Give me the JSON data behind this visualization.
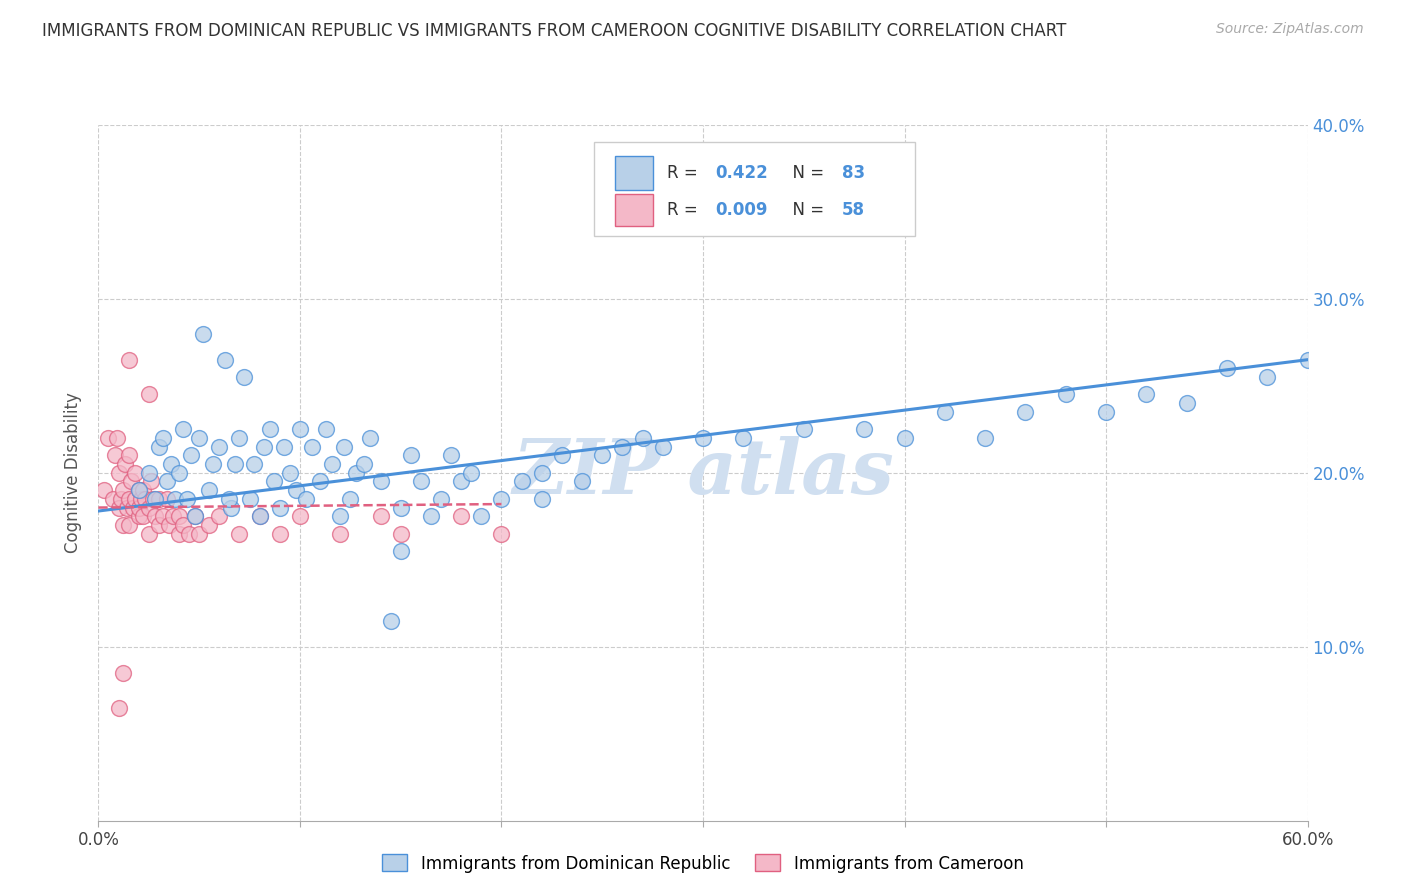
{
  "title": "IMMIGRANTS FROM DOMINICAN REPUBLIC VS IMMIGRANTS FROM CAMEROON COGNITIVE DISABILITY CORRELATION CHART",
  "source": "Source: ZipAtlas.com",
  "ylabel": "Cognitive Disability",
  "legend_label_1": "Immigrants from Dominican Republic",
  "legend_label_2": "Immigrants from Cameroon",
  "R1": "0.422",
  "N1": "83",
  "R2": "0.009",
  "N2": "58",
  "xlim": [
    0.0,
    0.6
  ],
  "ylim": [
    0.0,
    0.4
  ],
  "xticks": [
    0.0,
    0.1,
    0.2,
    0.3,
    0.4,
    0.5,
    0.6
  ],
  "yticks": [
    0.1,
    0.2,
    0.3,
    0.4
  ],
  "xtick_labels_show": [
    "0.0%",
    "",
    "",
    "",
    "",
    "",
    "60.0%"
  ],
  "ytick_right_labels": [
    "10.0%",
    "20.0%",
    "30.0%",
    "40.0%"
  ],
  "color_blue_fill": "#b8d0e8",
  "color_blue_edge": "#4a90d9",
  "color_pink_fill": "#f4b8c8",
  "color_pink_edge": "#e06080",
  "line_blue": "#4a90d9",
  "line_pink": "#e06080",
  "watermark_color": "#d0dff0",
  "background_color": "#ffffff",
  "grid_color": "#cccccc",
  "scatter1_x": [
    0.02,
    0.025,
    0.028,
    0.03,
    0.032,
    0.034,
    0.036,
    0.038,
    0.04,
    0.042,
    0.044,
    0.046,
    0.048,
    0.05,
    0.052,
    0.055,
    0.057,
    0.06,
    0.063,
    0.066,
    0.068,
    0.07,
    0.072,
    0.075,
    0.077,
    0.08,
    0.082,
    0.085,
    0.087,
    0.09,
    0.092,
    0.095,
    0.098,
    0.1,
    0.103,
    0.106,
    0.11,
    0.113,
    0.116,
    0.12,
    0.122,
    0.125,
    0.128,
    0.132,
    0.135,
    0.14,
    0.145,
    0.15,
    0.155,
    0.16,
    0.165,
    0.17,
    0.175,
    0.18,
    0.185,
    0.19,
    0.2,
    0.21,
    0.22,
    0.23,
    0.24,
    0.25,
    0.26,
    0.27,
    0.28,
    0.3,
    0.32,
    0.35,
    0.38,
    0.4,
    0.42,
    0.44,
    0.46,
    0.48,
    0.5,
    0.52,
    0.54,
    0.56,
    0.58,
    0.6,
    0.065,
    0.15,
    0.22
  ],
  "scatter1_y": [
    0.19,
    0.2,
    0.185,
    0.215,
    0.22,
    0.195,
    0.205,
    0.185,
    0.2,
    0.225,
    0.185,
    0.21,
    0.175,
    0.22,
    0.28,
    0.19,
    0.205,
    0.215,
    0.265,
    0.18,
    0.205,
    0.22,
    0.255,
    0.185,
    0.205,
    0.175,
    0.215,
    0.225,
    0.195,
    0.18,
    0.215,
    0.2,
    0.19,
    0.225,
    0.185,
    0.215,
    0.195,
    0.225,
    0.205,
    0.175,
    0.215,
    0.185,
    0.2,
    0.205,
    0.22,
    0.195,
    0.115,
    0.155,
    0.21,
    0.195,
    0.175,
    0.185,
    0.21,
    0.195,
    0.2,
    0.175,
    0.185,
    0.195,
    0.2,
    0.21,
    0.195,
    0.21,
    0.215,
    0.22,
    0.215,
    0.22,
    0.22,
    0.225,
    0.225,
    0.22,
    0.235,
    0.22,
    0.235,
    0.245,
    0.235,
    0.245,
    0.24,
    0.26,
    0.255,
    0.265,
    0.185,
    0.18,
    0.185
  ],
  "scatter2_x": [
    0.003,
    0.005,
    0.007,
    0.008,
    0.009,
    0.01,
    0.01,
    0.011,
    0.012,
    0.012,
    0.013,
    0.014,
    0.015,
    0.015,
    0.015,
    0.016,
    0.017,
    0.018,
    0.018,
    0.02,
    0.02,
    0.02,
    0.021,
    0.022,
    0.022,
    0.023,
    0.025,
    0.025,
    0.026,
    0.027,
    0.028,
    0.03,
    0.03,
    0.032,
    0.034,
    0.035,
    0.037,
    0.04,
    0.04,
    0.042,
    0.045,
    0.048,
    0.05,
    0.055,
    0.06,
    0.07,
    0.08,
    0.09,
    0.1,
    0.12,
    0.14,
    0.15,
    0.18,
    0.2,
    0.025,
    0.015,
    0.012,
    0.01
  ],
  "scatter2_y": [
    0.19,
    0.22,
    0.185,
    0.21,
    0.22,
    0.18,
    0.2,
    0.185,
    0.17,
    0.19,
    0.205,
    0.18,
    0.17,
    0.185,
    0.21,
    0.195,
    0.18,
    0.185,
    0.2,
    0.175,
    0.18,
    0.19,
    0.185,
    0.175,
    0.19,
    0.185,
    0.165,
    0.18,
    0.195,
    0.185,
    0.175,
    0.17,
    0.185,
    0.175,
    0.185,
    0.17,
    0.175,
    0.165,
    0.175,
    0.17,
    0.165,
    0.175,
    0.165,
    0.17,
    0.175,
    0.165,
    0.175,
    0.165,
    0.175,
    0.165,
    0.175,
    0.165,
    0.175,
    0.165,
    0.245,
    0.265,
    0.085,
    0.065
  ],
  "trendline1_x": [
    0.0,
    0.6
  ],
  "trendline1_y": [
    0.178,
    0.265
  ],
  "trendline2_x": [
    0.0,
    0.2
  ],
  "trendline2_y": [
    0.18,
    0.182
  ]
}
